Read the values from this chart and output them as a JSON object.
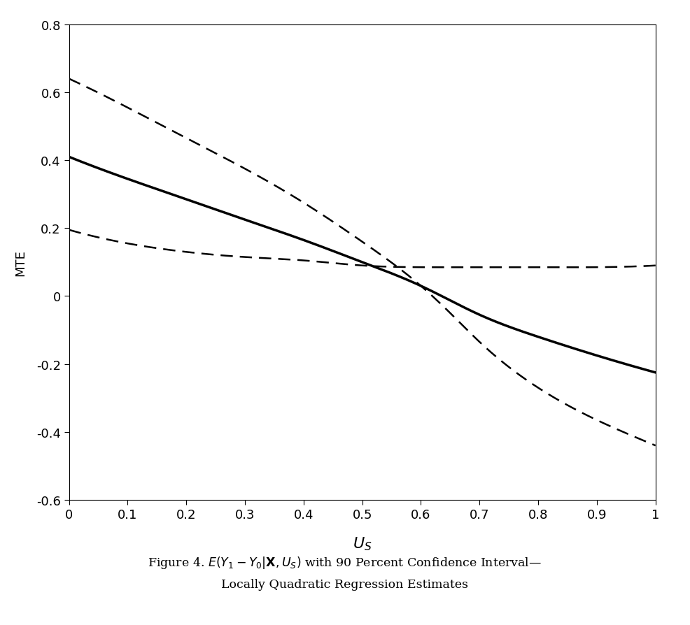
{
  "xlabel": "$U_S$",
  "ylabel": "MTE",
  "xlim": [
    0,
    1
  ],
  "ylim": [
    -0.6,
    0.8
  ],
  "xticks": [
    0,
    0.1,
    0.2,
    0.3,
    0.4,
    0.5,
    0.6,
    0.7,
    0.8,
    0.9,
    1.0
  ],
  "yticks": [
    -0.6,
    -0.4,
    -0.2,
    0.0,
    0.2,
    0.4,
    0.6,
    0.8
  ],
  "background_color": "#ffffff",
  "line_color": "#000000",
  "solid_line": {
    "x": [
      0.0,
      0.1,
      0.2,
      0.3,
      0.4,
      0.5,
      0.6,
      0.7,
      0.8,
      0.9,
      1.0
    ],
    "y": [
      0.41,
      0.345,
      0.285,
      0.225,
      0.165,
      0.1,
      0.03,
      -0.055,
      -0.12,
      -0.175,
      -0.225
    ],
    "linewidth": 2.5,
    "linestyle": "solid"
  },
  "upper_dashed": {
    "x": [
      0.0,
      0.1,
      0.2,
      0.3,
      0.4,
      0.5,
      0.6,
      0.65,
      0.7,
      0.8,
      0.9,
      1.0
    ],
    "y": [
      0.64,
      0.555,
      0.465,
      0.375,
      0.275,
      0.16,
      0.03,
      -0.05,
      -0.135,
      -0.27,
      -0.365,
      -0.44
    ],
    "linewidth": 1.8
  },
  "lower_dashed": {
    "x": [
      0.0,
      0.1,
      0.2,
      0.3,
      0.4,
      0.5,
      0.6,
      0.7,
      0.8,
      0.9,
      1.0
    ],
    "y": [
      0.195,
      0.155,
      0.13,
      0.115,
      0.105,
      0.09,
      0.085,
      0.085,
      0.085,
      0.085,
      0.09
    ],
    "linewidth": 1.8
  },
  "caption_line1_plain": "Figure 4. ",
  "caption_line1_math": "$E(Y_1 - Y_0|\\mathbf{X}, U_S)$",
  "caption_line1_rest": " with 90 Percent Confidence Interval—",
  "caption_line2": "Locally Quadratic Regression Estimates",
  "caption_fontsize": 12.5
}
